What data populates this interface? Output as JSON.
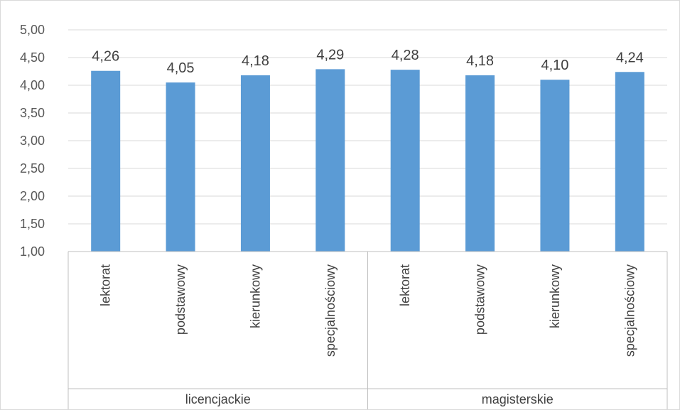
{
  "chart_data": {
    "type": "bar",
    "color": "#5b9bd5",
    "groups": [
      {
        "label": "licencjackie",
        "categories": [
          "lektorat",
          "podstawowy",
          "kierunkowy",
          "specjalnościowy"
        ],
        "values": [
          4.26,
          4.05,
          4.18,
          4.29
        ]
      },
      {
        "label": "magisterskie",
        "categories": [
          "lektorat",
          "podstawowy",
          "kierunkowy",
          "specjalnościowy"
        ],
        "values": [
          4.28,
          4.18,
          4.1,
          4.24
        ]
      }
    ],
    "data_labels": [
      "4,26",
      "4,05",
      "4,18",
      "4,29",
      "4,28",
      "4,18",
      "4,10",
      "4,24"
    ],
    "ylim": [
      1.0,
      5.0
    ],
    "y_ticks": [
      1.0,
      1.5,
      2.0,
      2.5,
      3.0,
      3.5,
      4.0,
      4.5,
      5.0
    ],
    "y_tick_labels": [
      "1,00",
      "1,50",
      "2,00",
      "2,50",
      "3,00",
      "3,50",
      "4,00",
      "4,50",
      "5,00"
    ],
    "title": "",
    "xlabel": "",
    "ylabel": "",
    "grid": true,
    "legend": "none"
  }
}
